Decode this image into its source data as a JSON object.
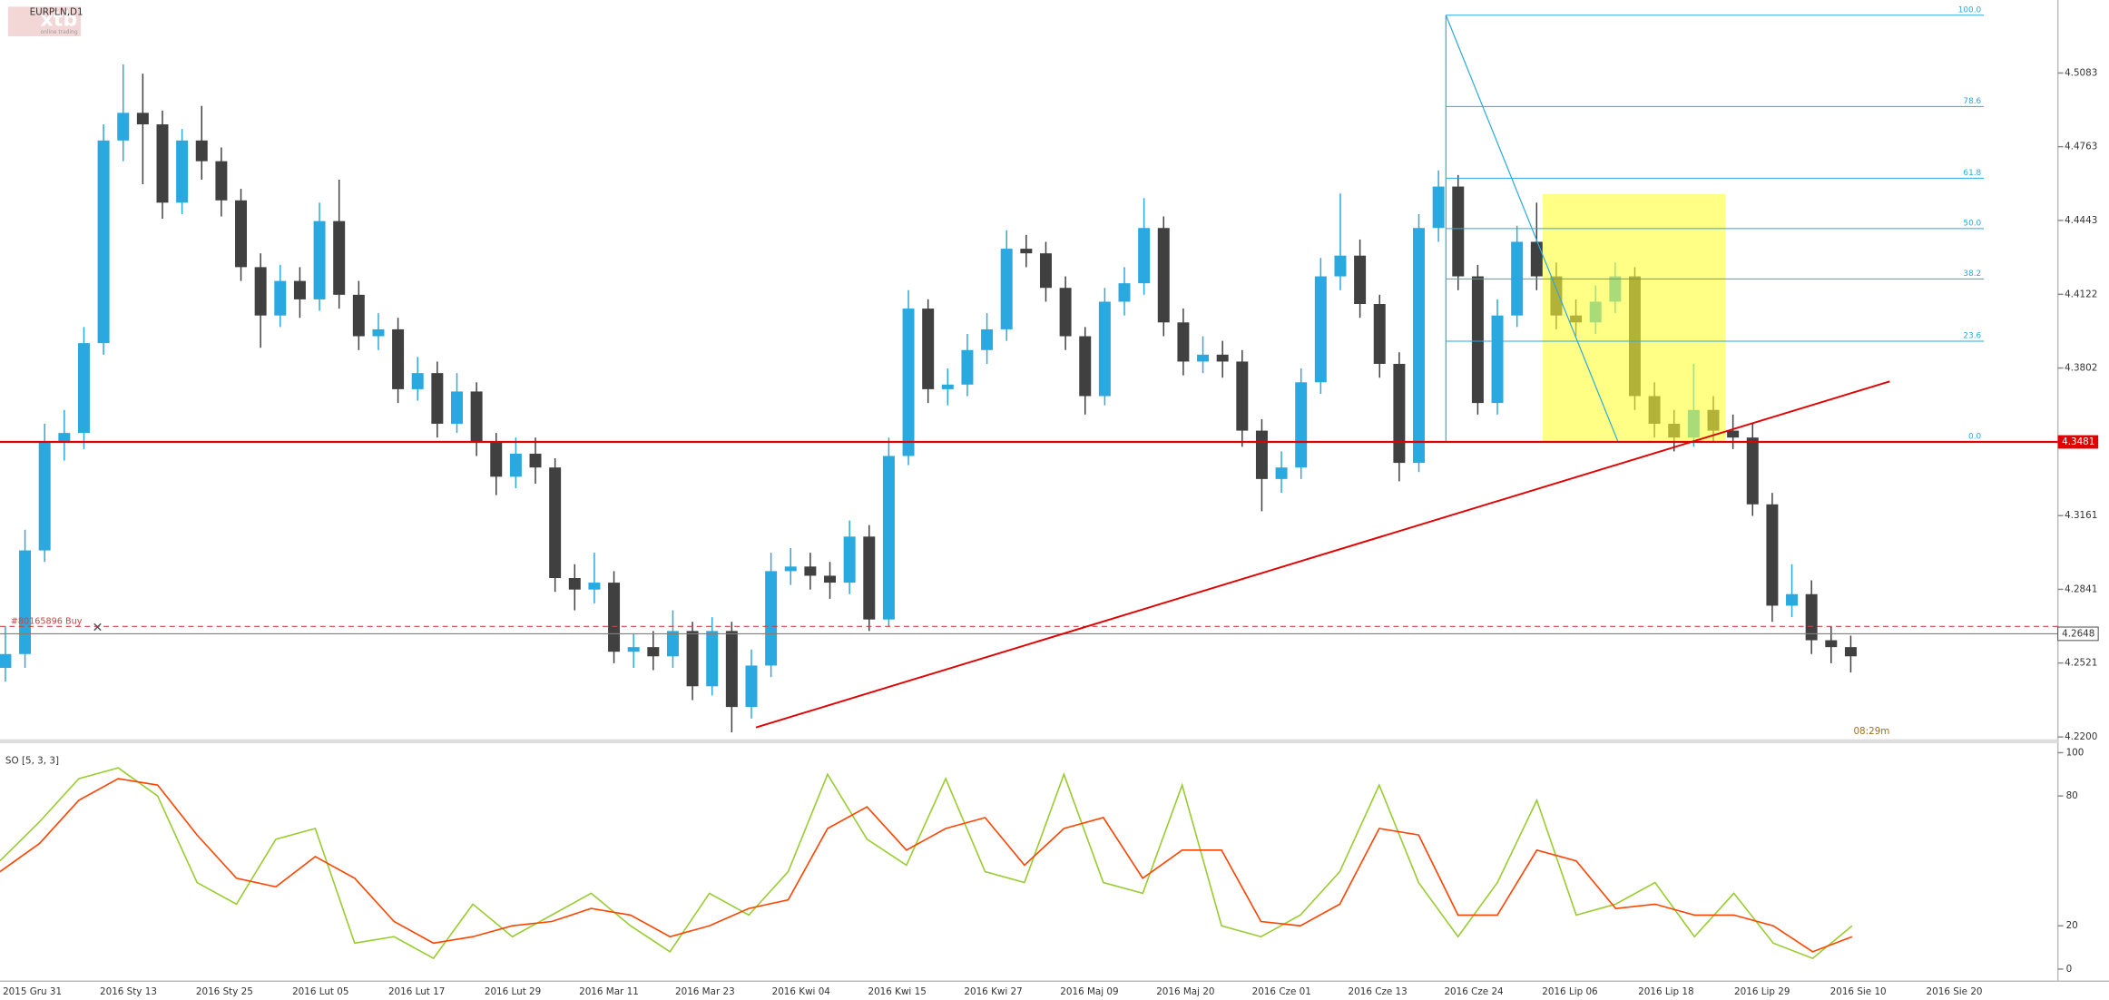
{
  "brand": {
    "name": "xtb",
    "tagline": "online trading"
  },
  "timer": "08:29m",
  "chart_data": [
    {
      "type": "candlestick",
      "title": "EURPLN,D1",
      "ylim": [
        4.219,
        4.54
      ],
      "yticks": [
        4.5083,
        4.4763,
        4.4443,
        4.4122,
        4.3802,
        4.3161,
        4.2841,
        4.2521,
        {
          "value": 4.22,
          "label": "4.2200"
        }
      ],
      "up_color": "#29a9e0",
      "down_color": "#404040",
      "open": [
        4.25,
        4.256,
        4.301,
        4.348,
        4.352,
        4.391,
        4.479,
        4.491,
        4.486,
        4.452,
        4.479,
        4.47,
        4.453,
        4.424,
        4.403,
        4.418,
        4.41,
        4.444,
        4.412,
        4.394,
        4.397,
        4.371,
        4.378,
        4.356,
        4.37,
        4.348,
        4.333,
        4.343,
        4.337,
        4.289,
        4.284,
        4.287,
        4.257,
        4.259,
        4.255,
        4.266,
        4.242,
        4.266,
        4.233,
        4.251,
        4.292,
        4.294,
        4.29,
        4.287,
        4.307,
        4.271,
        4.342,
        4.406,
        4.371,
        4.373,
        4.388,
        4.397,
        4.432,
        4.43,
        4.415,
        4.394,
        4.368,
        4.409,
        4.417,
        4.441,
        4.4,
        4.383,
        4.386,
        4.383,
        4.353,
        4.332,
        4.337,
        4.374,
        4.42,
        4.429,
        4.408,
        4.382,
        4.339,
        4.441,
        4.459,
        4.42,
        4.365,
        4.403,
        4.435,
        4.42,
        4.403,
        4.4,
        4.409,
        4.42,
        4.368,
        4.356,
        4.35,
        4.362,
        4.353,
        4.35,
        4.321,
        4.277,
        4.282,
        4.262,
        4.259
      ],
      "high": [
        4.268,
        4.31,
        4.356,
        4.362,
        4.398,
        4.486,
        4.512,
        4.508,
        4.492,
        4.484,
        4.494,
        4.476,
        4.458,
        4.43,
        4.425,
        4.424,
        4.452,
        4.462,
        4.418,
        4.404,
        4.402,
        4.385,
        4.383,
        4.378,
        4.374,
        4.352,
        4.35,
        4.35,
        4.341,
        4.295,
        4.3,
        4.292,
        4.265,
        4.266,
        4.275,
        4.27,
        4.272,
        4.27,
        4.258,
        4.3,
        4.302,
        4.3,
        4.296,
        4.314,
        4.312,
        4.35,
        4.414,
        4.41,
        4.38,
        4.395,
        4.404,
        4.44,
        4.438,
        4.435,
        4.42,
        4.398,
        4.415,
        4.424,
        4.454,
        4.446,
        4.406,
        4.394,
        4.392,
        4.388,
        4.358,
        4.344,
        4.38,
        4.428,
        4.456,
        4.436,
        4.412,
        4.387,
        4.447,
        4.466,
        4.464,
        4.425,
        4.41,
        4.442,
        4.452,
        4.426,
        4.41,
        4.416,
        4.426,
        4.424,
        4.374,
        4.362,
        4.382,
        4.368,
        4.36,
        4.356,
        4.326,
        4.295,
        4.288,
        4.268,
        4.264
      ],
      "low": [
        4.244,
        4.25,
        4.296,
        4.34,
        4.345,
        4.386,
        4.47,
        4.46,
        4.445,
        4.447,
        4.462,
        4.446,
        4.418,
        4.389,
        4.398,
        4.402,
        4.405,
        4.406,
        4.388,
        4.388,
        4.365,
        4.366,
        4.35,
        4.352,
        4.342,
        4.325,
        4.328,
        4.33,
        4.283,
        4.275,
        4.278,
        4.252,
        4.25,
        4.249,
        4.25,
        4.236,
        4.238,
        4.222,
        4.228,
        4.246,
        4.286,
        4.284,
        4.28,
        4.282,
        4.266,
        4.268,
        4.338,
        4.365,
        4.364,
        4.368,
        4.382,
        4.392,
        4.424,
        4.409,
        4.388,
        4.36,
        4.364,
        4.403,
        4.412,
        4.394,
        4.377,
        4.378,
        4.376,
        4.346,
        4.318,
        4.326,
        4.332,
        4.369,
        4.414,
        4.402,
        4.376,
        4.331,
        4.335,
        4.435,
        4.414,
        4.36,
        4.36,
        4.398,
        4.414,
        4.397,
        4.394,
        4.395,
        4.404,
        4.362,
        4.35,
        4.344,
        4.346,
        4.348,
        4.345,
        4.316,
        4.27,
        4.272,
        4.256,
        4.252,
        4.248
      ],
      "close": [
        4.256,
        4.301,
        4.348,
        4.352,
        4.391,
        4.479,
        4.491,
        4.486,
        4.452,
        4.479,
        4.47,
        4.453,
        4.424,
        4.403,
        4.418,
        4.41,
        4.444,
        4.412,
        4.394,
        4.397,
        4.371,
        4.378,
        4.356,
        4.37,
        4.348,
        4.333,
        4.343,
        4.337,
        4.289,
        4.284,
        4.287,
        4.257,
        4.259,
        4.255,
        4.266,
        4.242,
        4.266,
        4.233,
        4.251,
        4.292,
        4.294,
        4.29,
        4.287,
        4.307,
        4.271,
        4.342,
        4.406,
        4.371,
        4.373,
        4.388,
        4.397,
        4.432,
        4.43,
        4.415,
        4.394,
        4.368,
        4.409,
        4.417,
        4.441,
        4.4,
        4.383,
        4.386,
        4.383,
        4.353,
        4.332,
        4.337,
        4.374,
        4.42,
        4.429,
        4.408,
        4.382,
        4.339,
        4.441,
        4.459,
        4.42,
        4.365,
        4.403,
        4.435,
        4.42,
        4.403,
        4.4,
        4.409,
        4.42,
        4.368,
        4.356,
        4.35,
        4.362,
        4.353,
        4.35,
        4.321,
        4.277,
        4.282,
        4.262,
        4.259,
        4.255
      ],
      "date_labels": [
        "2015 Gru 31",
        "2016 Sty 13",
        "2016 Sty 25",
        "2016 Lut 05",
        "2016 Lut 17",
        "2016 Lut 29",
        "2016 Mar 11",
        "2016 Mar 23",
        "2016 Kwi 04",
        "2016 Kwi 15",
        "2016 Kwi 27",
        "2016 Maj 09",
        "2016 Maj 20",
        "2016 Cze 01",
        "2016 Cze 13",
        "2016 Cze 24",
        "2016 Lip 06",
        "2016 Lip 18",
        "2016 Lip 29",
        "2016 Sie 10",
        "2016 Sie 20"
      ],
      "support_line": {
        "value": 4.3481,
        "color": "#e00000"
      },
      "price_line": {
        "value": 4.2648,
        "color": "#808080"
      },
      "order_line": {
        "value": 4.268,
        "label": "#80165896 Buy",
        "color": "#d04040"
      },
      "trendline": {
        "from": 4.2241,
        "to": 4.3744,
        "color": "#e00000"
      },
      "highlight": {
        "top": 4.4557,
        "bottom": 4.3481,
        "color": "#ffff33"
      },
      "fib": {
        "high": 4.5334,
        "low": 4.3481,
        "color": "#29a9e0",
        "levels": [
          {
            "value": 100,
            "label": "100.0"
          },
          78.6,
          61.8,
          {
            "value": 50,
            "label": "50.0"
          },
          38.2,
          23.6,
          {
            "value": 0,
            "label": "0.0"
          }
        ]
      }
    },
    {
      "type": "line",
      "title": "SO [5, 3, 3]",
      "ylim": [
        0,
        100
      ],
      "yticks": [
        0,
        20,
        80,
        100
      ],
      "series": [
        {
          "color": "#9acd32",
          "values": [
            50,
            68,
            88,
            93,
            80,
            40,
            30,
            60,
            65,
            12,
            15,
            5,
            30,
            15,
            25,
            35,
            20,
            8,
            35,
            25,
            45,
            90,
            60,
            48,
            88,
            45,
            40,
            90,
            40,
            35,
            85,
            20,
            15,
            25,
            45,
            85,
            40,
            15,
            40,
            78,
            25,
            30,
            40,
            15,
            35,
            12,
            5,
            20
          ]
        },
        {
          "color": "#ff4500",
          "values": [
            45,
            58,
            78,
            88,
            85,
            62,
            42,
            38,
            52,
            42,
            22,
            12,
            15,
            20,
            22,
            28,
            25,
            15,
            20,
            28,
            32,
            65,
            75,
            55,
            65,
            70,
            48,
            65,
            70,
            42,
            55,
            55,
            22,
            20,
            30,
            65,
            62,
            25,
            25,
            55,
            50,
            28,
            30,
            25,
            25,
            20,
            8,
            15
          ]
        }
      ]
    }
  ]
}
